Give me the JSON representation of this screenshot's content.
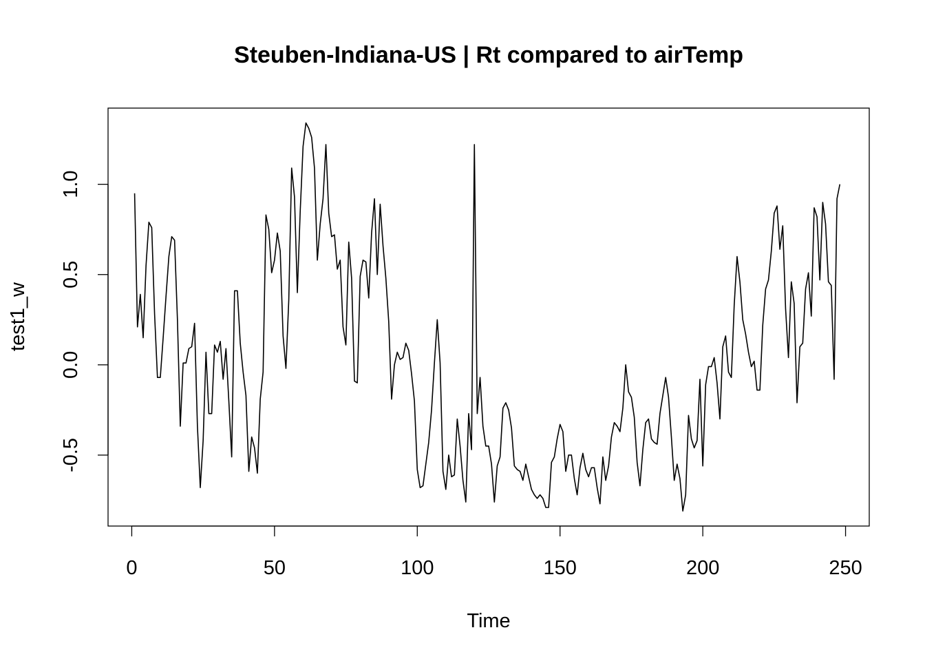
{
  "chart_data": {
    "type": "line",
    "title": "Steuben-Indiana-US | Rt compared to airTemp",
    "xlabel": "Time",
    "ylabel": "test1_w",
    "xlim": [
      -8.3,
      258.3
    ],
    "ylim": [
      -0.893,
      1.422
    ],
    "xticks": [
      0,
      50,
      100,
      150,
      200,
      250
    ],
    "yticks": [
      -0.5,
      0.0,
      0.5,
      1.0
    ],
    "xtick_labels": [
      "0",
      "50",
      "100",
      "150",
      "200",
      "250"
    ],
    "ytick_labels": [
      "-0.5",
      "0.0",
      "0.5",
      "1.0"
    ],
    "grid": false,
    "legend": "none",
    "line_color": "#000000",
    "x_start": 1,
    "values": [
      0.95,
      0.21,
      0.39,
      0.15,
      0.55,
      0.79,
      0.76,
      0.28,
      -0.07,
      -0.07,
      0.15,
      0.38,
      0.6,
      0.71,
      0.69,
      0.25,
      -0.34,
      0.01,
      0.01,
      0.09,
      0.1,
      0.23,
      -0.34,
      -0.68,
      -0.42,
      0.07,
      -0.27,
      -0.27,
      0.11,
      0.07,
      0.13,
      -0.08,
      0.09,
      -0.2,
      -0.51,
      0.41,
      0.41,
      0.12,
      -0.04,
      -0.17,
      -0.59,
      -0.4,
      -0.46,
      -0.6,
      -0.19,
      -0.04,
      0.83,
      0.75,
      0.51,
      0.58,
      0.73,
      0.63,
      0.16,
      -0.02,
      0.36,
      1.09,
      0.93,
      0.4,
      0.85,
      1.21,
      1.34,
      1.31,
      1.26,
      1.09,
      0.58,
      0.78,
      0.92,
      1.22,
      0.84,
      0.71,
      0.72,
      0.53,
      0.58,
      0.21,
      0.11,
      0.68,
      0.48,
      -0.09,
      -0.1,
      0.49,
      0.58,
      0.57,
      0.37,
      0.73,
      0.92,
      0.5,
      0.89,
      0.66,
      0.48,
      0.24,
      -0.19,
      0.0,
      0.07,
      0.03,
      0.04,
      0.12,
      0.08,
      -0.05,
      -0.2,
      -0.58,
      -0.68,
      -0.67,
      -0.55,
      -0.43,
      -0.25,
      0.01,
      0.25,
      0.01,
      -0.59,
      -0.69,
      -0.5,
      -0.62,
      -0.61,
      -0.3,
      -0.45,
      -0.64,
      -0.76,
      -0.27,
      -0.47,
      1.22,
      -0.27,
      -0.07,
      -0.34,
      -0.45,
      -0.45,
      -0.55,
      -0.76,
      -0.56,
      -0.51,
      -0.24,
      -0.21,
      -0.25,
      -0.35,
      -0.56,
      -0.58,
      -0.59,
      -0.64,
      -0.55,
      -0.62,
      -0.69,
      -0.72,
      -0.74,
      -0.72,
      -0.74,
      -0.79,
      -0.79,
      -0.54,
      -0.51,
      -0.41,
      -0.33,
      -0.37,
      -0.59,
      -0.5,
      -0.5,
      -0.63,
      -0.72,
      -0.57,
      -0.49,
      -0.58,
      -0.62,
      -0.57,
      -0.57,
      -0.68,
      -0.77,
      -0.51,
      -0.64,
      -0.56,
      -0.4,
      -0.32,
      -0.34,
      -0.37,
      -0.24,
      0.0,
      -0.15,
      -0.18,
      -0.29,
      -0.54,
      -0.67,
      -0.47,
      -0.32,
      -0.3,
      -0.41,
      -0.43,
      -0.44,
      -0.27,
      -0.17,
      -0.07,
      -0.18,
      -0.4,
      -0.64,
      -0.55,
      -0.63,
      -0.81,
      -0.72,
      -0.28,
      -0.41,
      -0.46,
      -0.42,
      -0.08,
      -0.56,
      -0.11,
      -0.01,
      -0.01,
      0.04,
      -0.1,
      -0.3,
      0.1,
      0.16,
      -0.04,
      -0.07,
      0.33,
      0.6,
      0.46,
      0.25,
      0.17,
      0.07,
      -0.01,
      0.02,
      -0.14,
      -0.14,
      0.22,
      0.42,
      0.47,
      0.63,
      0.84,
      0.88,
      0.64,
      0.77,
      0.31,
      0.04,
      0.46,
      0.34,
      -0.21,
      0.1,
      0.12,
      0.42,
      0.51,
      0.27,
      0.87,
      0.82,
      0.47,
      0.9,
      0.78,
      0.46,
      0.44,
      -0.08,
      0.92,
      1.0
    ]
  }
}
